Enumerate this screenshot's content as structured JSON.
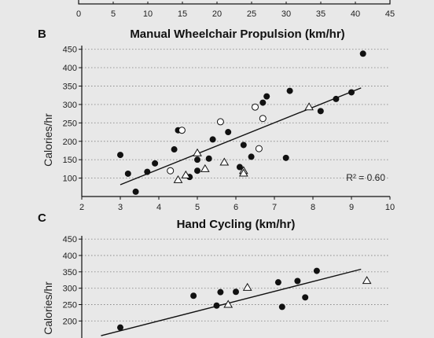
{
  "colors": {
    "background": "#e8e8e8",
    "ink": "#111111",
    "grid": "#8a8a8a"
  },
  "top_axis": {
    "ticks": [
      "0",
      "5",
      "10",
      "15",
      "20",
      "25",
      "30",
      "35",
      "40",
      "45"
    ],
    "range": [
      0,
      45
    ]
  },
  "chart_data": [
    {
      "panel": "B",
      "type": "scatter",
      "title": "Manual Wheelchair Propulsion (km/hr)",
      "xlabel": "",
      "ylabel": "Calories/hr",
      "xlim": [
        2,
        10
      ],
      "ylim": [
        50,
        460
      ],
      "xticks": [
        "2",
        "3",
        "4",
        "5",
        "6",
        "7",
        "8",
        "9",
        "10"
      ],
      "yticks": [
        "100",
        "150",
        "200",
        "250",
        "300",
        "350",
        "400",
        "450"
      ],
      "grid": "horizontal dotted",
      "annotation": "R² = 0.60",
      "trendline": {
        "x": [
          3.0,
          9.25
        ],
        "y": [
          82,
          345
        ]
      },
      "series": [
        {
          "marker": "filled-circle",
          "points": [
            [
              3.0,
              163
            ],
            [
              3.2,
              112
            ],
            [
              3.4,
              63
            ],
            [
              3.7,
              117
            ],
            [
              3.9,
              140
            ],
            [
              4.4,
              178
            ],
            [
              4.5,
              230
            ],
            [
              4.8,
              103
            ],
            [
              5.0,
              150
            ],
            [
              5.0,
              120
            ],
            [
              5.3,
              153
            ],
            [
              5.4,
              205
            ],
            [
              5.8,
              225
            ],
            [
              6.1,
              130
            ],
            [
              6.2,
              190
            ],
            [
              6.4,
              158
            ],
            [
              6.7,
              305
            ],
            [
              6.8,
              322
            ],
            [
              7.3,
              155
            ],
            [
              7.4,
              337
            ],
            [
              8.2,
              282
            ],
            [
              8.6,
              315
            ],
            [
              9.0,
              333
            ],
            [
              9.3,
              438
            ]
          ]
        },
        {
          "marker": "open-circle",
          "points": [
            [
              4.3,
              120
            ],
            [
              4.6,
              230
            ],
            [
              5.6,
              253
            ],
            [
              6.5,
              293
            ],
            [
              6.6,
              180
            ],
            [
              6.7,
              262
            ]
          ]
        },
        {
          "marker": "open-triangle",
          "points": [
            [
              4.5,
              95
            ],
            [
              4.7,
              108
            ],
            [
              5.0,
              168
            ],
            [
              5.2,
              125
            ],
            [
              5.7,
              143
            ],
            [
              6.2,
              120
            ],
            [
              6.2,
              113
            ],
            [
              7.9,
              293
            ]
          ]
        }
      ]
    },
    {
      "panel": "C",
      "type": "scatter",
      "title": "Hand Cycling (km/hr)",
      "xlabel": "",
      "ylabel": "Calories/hr",
      "ylim": [
        100,
        460
      ],
      "yticks": [
        "200",
        "250",
        "300",
        "350",
        "400",
        "450"
      ],
      "grid": "horizontal dotted",
      "trendline": {
        "x": [
          2.5,
          9.25
        ],
        "y": [
          155,
          358
        ]
      },
      "series": [
        {
          "marker": "filled-circle",
          "points": [
            [
              3.0,
              180
            ],
            [
              4.9,
              277
            ],
            [
              5.5,
              247
            ],
            [
              5.6,
              288
            ],
            [
              6.0,
              289
            ],
            [
              7.1,
              318
            ],
            [
              7.2,
              243
            ],
            [
              7.6,
              322
            ],
            [
              7.8,
              272
            ],
            [
              8.1,
              353
            ]
          ]
        },
        {
          "marker": "open-triangle",
          "points": [
            [
              5.8,
              250
            ],
            [
              6.3,
              302
            ],
            [
              9.4,
              323
            ]
          ]
        }
      ]
    }
  ]
}
